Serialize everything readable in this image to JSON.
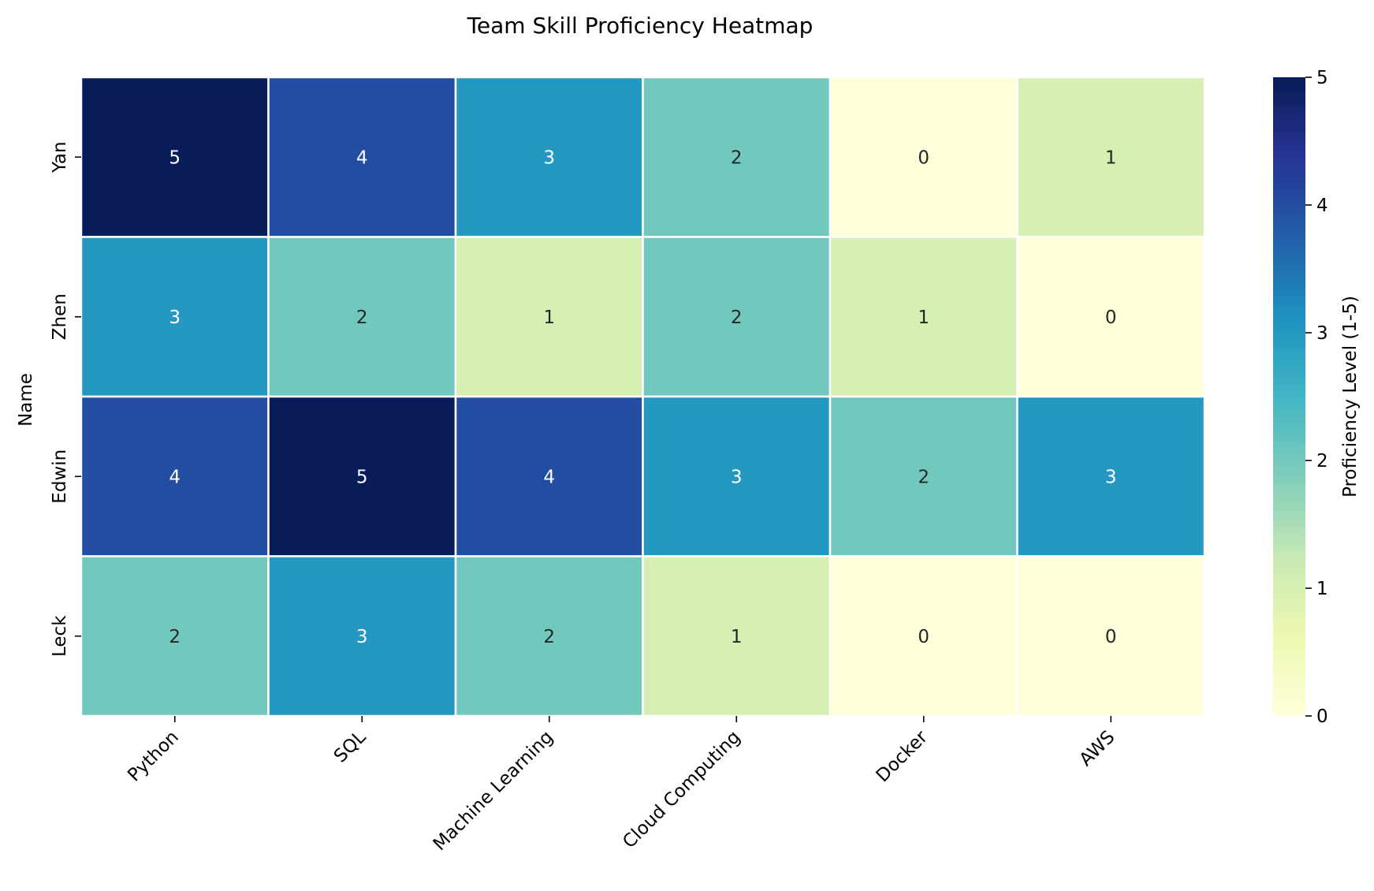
{
  "chart_data": {
    "type": "heatmap",
    "title": "Team Skill Proficiency Heatmap",
    "xlabel": "",
    "ylabel": "Name",
    "x_categories": [
      "Python",
      "SQL",
      "Machine Learning",
      "Cloud Computing",
      "Docker",
      "AWS"
    ],
    "y_categories": [
      "Yan",
      "Zhen",
      "Edwin",
      "Leck"
    ],
    "values": [
      [
        5,
        4,
        3,
        2,
        0,
        1
      ],
      [
        3,
        2,
        1,
        2,
        1,
        0
      ],
      [
        4,
        5,
        4,
        3,
        2,
        3
      ],
      [
        2,
        3,
        2,
        1,
        0,
        0
      ]
    ],
    "colorbar": {
      "label": "Proficiency Level (1-5)",
      "range": [
        0,
        5
      ],
      "ticks": [
        0,
        1,
        2,
        3,
        4,
        5
      ],
      "colormap": "YlGnBu"
    },
    "colors": {
      "0": "#ffffd9",
      "1": "#d6efb3",
      "2": "#73c8bd",
      "3": "#2498c1",
      "4": "#234da0",
      "5": "#081d58"
    },
    "annotations": true
  }
}
